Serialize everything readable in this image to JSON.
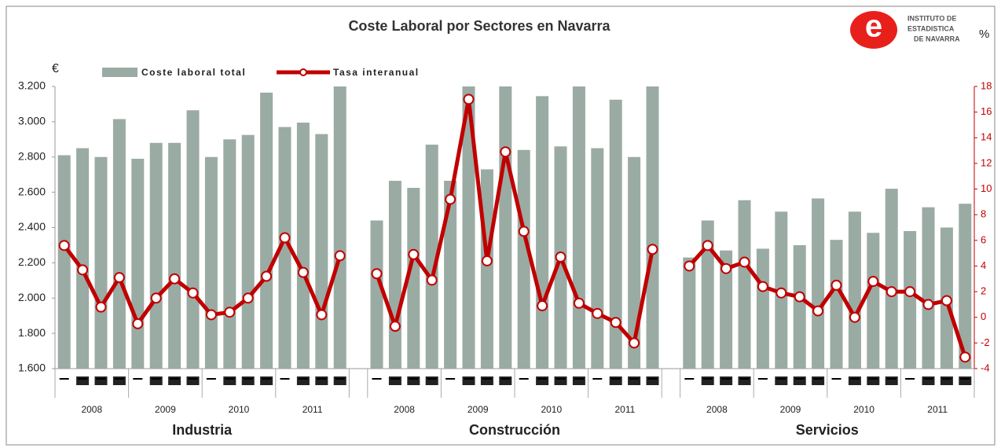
{
  "chart_data": {
    "type": "bar_line",
    "title": "Coste Laboral por Sectores en Navarra",
    "logo": {
      "letter": "e",
      "lines": [
        "INSTITUTO DE",
        "ESTADISTICA",
        "DE NAVARRA"
      ]
    },
    "y_unit": "€",
    "y2_unit": "%",
    "groups": [
      {
        "name": "Industria",
        "years": [
          2008,
          2009,
          2010,
          2011
        ]
      },
      {
        "name": "Construcción",
        "years": [
          2008,
          2009,
          2010,
          2011
        ]
      },
      {
        "name": "Servicios",
        "years": [
          2008,
          2009,
          2010,
          2011
        ]
      }
    ],
    "series": [
      {
        "name": "Coste laboral total",
        "color": "#9aaba3",
        "values": [
          2810,
          2850,
          2800,
          3015,
          2790,
          2880,
          2880,
          3065,
          2800,
          2900,
          2925,
          3165,
          2970,
          2995,
          2930,
          3200,
          2440,
          2665,
          2625,
          2870,
          2665,
          3200,
          2730,
          3200,
          2840,
          3145,
          2860,
          3200,
          2850,
          3125,
          2800,
          3200,
          2230,
          2440,
          2270,
          2555,
          2280,
          2490,
          2300,
          2565,
          2330,
          2490,
          2370,
          2620,
          2380,
          2515,
          2400,
          2535
        ]
      },
      {
        "name": "Tasa interanual",
        "color": "#c00000",
        "axis": "y2",
        "values": [
          5.6,
          3.7,
          0.8,
          3.1,
          -0.5,
          1.5,
          3.0,
          1.9,
          0.2,
          0.4,
          1.5,
          3.2,
          6.2,
          3.5,
          0.2,
          4.8,
          3.4,
          -0.7,
          4.9,
          2.9,
          9.2,
          17.0,
          4.4,
          12.9,
          6.7,
          0.9,
          4.7,
          1.1,
          0.3,
          -0.4,
          -2.0,
          5.3,
          4.0,
          5.6,
          3.8,
          4.3,
          2.4,
          1.9,
          1.6,
          0.5,
          2.5,
          0.0,
          2.8,
          2.0,
          2.0,
          1.0,
          1.3,
          -3.1
        ]
      }
    ],
    "ylim": [
      1600,
      3200
    ],
    "yticks": [
      {
        "value": 1600,
        "label": "1.600"
      },
      {
        "value": 1800,
        "label": "1.800"
      },
      {
        "value": 2000,
        "label": "2.000"
      },
      {
        "value": 2200,
        "label": "2.200"
      },
      {
        "value": 2400,
        "label": "2.400"
      },
      {
        "value": 2600,
        "label": "2.600"
      },
      {
        "value": 2800,
        "label": "2.800"
      },
      {
        "value": 3000,
        "label": "3.000"
      },
      {
        "value": 3200,
        "label": "3.200"
      }
    ],
    "y2lim": [
      -4,
      18
    ],
    "y2ticks": [
      -4,
      -2,
      0,
      2,
      4,
      6,
      8,
      10,
      12,
      14,
      16,
      18
    ]
  }
}
